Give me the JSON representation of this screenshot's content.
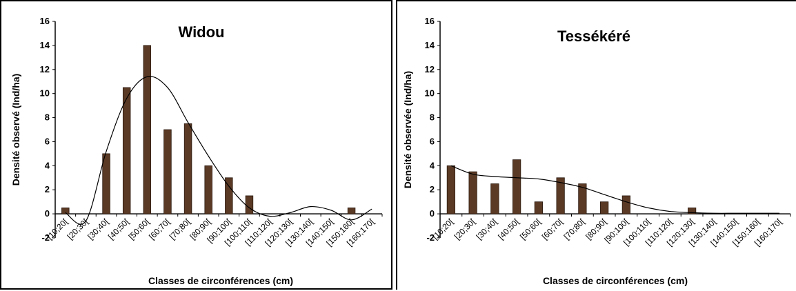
{
  "colors": {
    "bar": "#5b3a25",
    "bar_edge": "#2b1a10",
    "curve": "#000000",
    "axis": "#000000"
  },
  "chart_data": [
    {
      "type": "bar",
      "title": "Widou",
      "xlabel": "Classes de circonférences (cm)",
      "ylabel": "Densité observé (Ind/ha)",
      "ylim": [
        -2,
        16
      ],
      "yticks": [
        "-2",
        "0",
        "2",
        "4",
        "6",
        "8",
        "10",
        "12",
        "14",
        "16"
      ],
      "grid": false,
      "categories": [
        "[10;20[",
        "[20;30[",
        "[30;40[",
        "[40;50[",
        "[50;60[",
        "[60;70[",
        "[70;80[",
        "[80;90[",
        "[90;100[",
        "[100;110[",
        "[110;120[",
        "[120;130[",
        "[130;140[",
        "[140;150[",
        "[150;160[",
        "[160;170["
      ],
      "values": [
        0.5,
        0,
        5,
        10.5,
        14,
        7,
        7.5,
        4,
        3,
        1.5,
        0,
        0,
        0,
        0,
        0.5,
        0
      ],
      "trend": [
        0.1,
        -0.6,
        5.2,
        9.6,
        11.4,
        10.5,
        7.6,
        4.8,
        2.3,
        0.5,
        -0.2,
        0.1,
        0.6,
        0.3,
        -0.5,
        0.4
      ]
    },
    {
      "type": "bar",
      "title": "Tessékéré",
      "xlabel": "Classes de circonférences (cm)",
      "ylabel": "Densité observée (Ind/ha)",
      "ylim": [
        -2,
        16
      ],
      "yticks": [
        "-2",
        "0",
        "2",
        "4",
        "6",
        "8",
        "10",
        "12",
        "14",
        "16"
      ],
      "grid": false,
      "categories": [
        "[10;20[",
        "[20;30[",
        "[30;40[",
        "[40;50[",
        "[50;60[",
        "[60;70[",
        "[70;80[",
        "[80;90[",
        "[90;100[",
        "[100;110[",
        "[110;120[",
        "[120;130[",
        "[130;140[",
        "[140;150[",
        "[150;160[",
        "[160;170["
      ],
      "values": [
        4,
        3.5,
        2.5,
        4.5,
        1,
        3,
        2.5,
        1,
        1.5,
        0,
        0,
        0.5,
        0,
        0,
        0,
        0
      ],
      "trend": [
        4.0,
        3.3,
        3.1,
        3.0,
        2.9,
        2.6,
        2.2,
        1.6,
        1.0,
        0.5,
        0.2,
        0.1,
        0.05,
        0.05,
        0.05,
        0.05
      ]
    }
  ]
}
